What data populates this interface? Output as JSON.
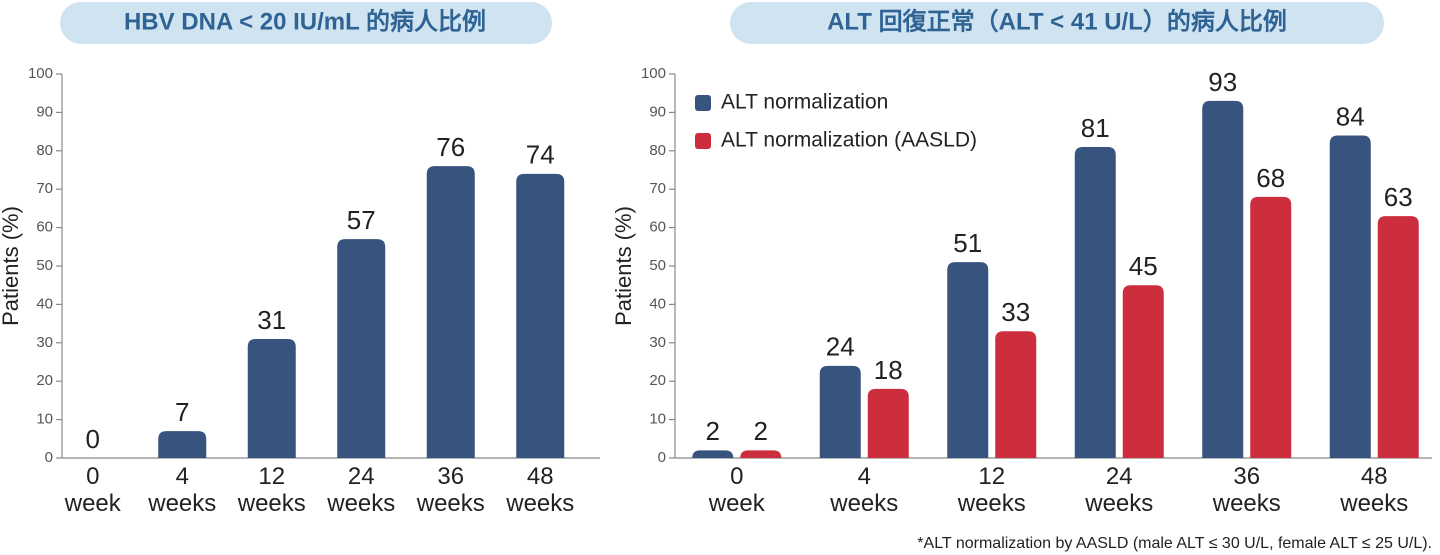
{
  "chart_data": [
    {
      "type": "bar",
      "title": "HBV DNA < 20 IU/mL 的病人比例",
      "ylabel": "Patients (%)",
      "categories": [
        "0 week",
        "4 weeks",
        "12 weeks",
        "24 weeks",
        "36 weeks",
        "48 weeks"
      ],
      "values": [
        0,
        7,
        31,
        57,
        76,
        74
      ],
      "color": "#37547e",
      "ylim": [
        0,
        100
      ],
      "yticks": [
        0,
        10,
        20,
        30,
        40,
        50,
        60,
        70,
        80,
        90,
        100
      ]
    },
    {
      "type": "bar",
      "title": "ALT 回復正常（ALT < 41 U/L）的病人比例",
      "ylabel": "Patients (%)",
      "categories": [
        "0 week",
        "4 weeks",
        "12 weeks",
        "24 weeks",
        "36 weeks",
        "48 weeks"
      ],
      "series": [
        {
          "name": "ALT normalization",
          "color": "#37547e",
          "values": [
            2,
            24,
            51,
            81,
            93,
            84
          ]
        },
        {
          "name": "ALT normalization (AASLD)",
          "color": "#cd2e3d",
          "values": [
            2,
            18,
            33,
            45,
            68,
            63
          ]
        }
      ],
      "legend": "upper left",
      "ylim": [
        0,
        100
      ],
      "yticks": [
        0,
        10,
        20,
        30,
        40,
        50,
        60,
        70,
        80,
        90,
        100
      ],
      "footnote": "*ALT normalization by AASLD (male ALT ≤ 30 U/L, female ALT ≤ 25 U/L)."
    }
  ]
}
